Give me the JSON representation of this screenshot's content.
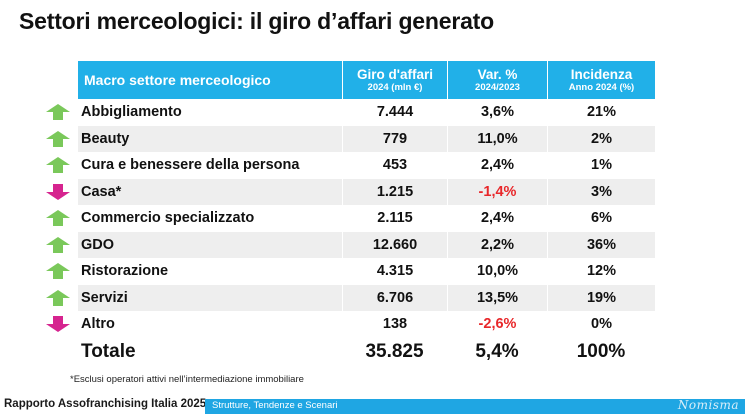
{
  "title": "Settori merceologici: il giro d’affari generato",
  "header": {
    "col0": "Macro settore merceologico",
    "col1_line1": "Giro d'affari",
    "col1_line2": "2024 (mln €)",
    "col2_line1": "Var. %",
    "col2_line2": "2024/2023",
    "col3_line1": "Incidenza",
    "col3_line2": "Anno 2024 (%)"
  },
  "rows": [
    {
      "trend": "up",
      "sector": "Abbigliamento",
      "revenue": "7.444",
      "change": "3,6%",
      "share": "21%"
    },
    {
      "trend": "up",
      "sector": "Beauty",
      "revenue": "779",
      "change": "11,0%",
      "share": "2%"
    },
    {
      "trend": "up",
      "sector": "Cura e benessere della persona",
      "revenue": "453",
      "change": "2,4%",
      "share": "1%"
    },
    {
      "trend": "down",
      "sector": "Casa*",
      "revenue": "1.215",
      "change": "-1,4%",
      "share": "3%"
    },
    {
      "trend": "up",
      "sector": "Commercio specializzato",
      "revenue": "2.115",
      "change": "2,4%",
      "share": "6%"
    },
    {
      "trend": "up",
      "sector": "GDO",
      "revenue": "12.660",
      "change": "2,2%",
      "share": "36%"
    },
    {
      "trend": "up",
      "sector": "Ristorazione",
      "revenue": "4.315",
      "change": "10,0%",
      "share": "12%"
    },
    {
      "trend": "up",
      "sector": "Servizi",
      "revenue": "6.706",
      "change": "13,5%",
      "share": "19%"
    },
    {
      "trend": "down",
      "sector": "Altro",
      "revenue": "138",
      "change": "-2,6%",
      "share": "0%"
    }
  ],
  "total": {
    "label": "Totale",
    "revenue": "35.825",
    "change": "5,4%",
    "share": "100%"
  },
  "note": "*Esclusi operatori attivi nell’intermediazione immobiliare",
  "footer": {
    "left": "Rapporto Assofranchising Italia 2025 -",
    "subtitle": "Strutture, Tendenze e Scenari",
    "logo": "Nomisma"
  },
  "colors": {
    "header": "#21b0e8",
    "up_arrow": "#7ac85a",
    "down_arrow": "#d6248f",
    "negative": "#e8272a"
  }
}
